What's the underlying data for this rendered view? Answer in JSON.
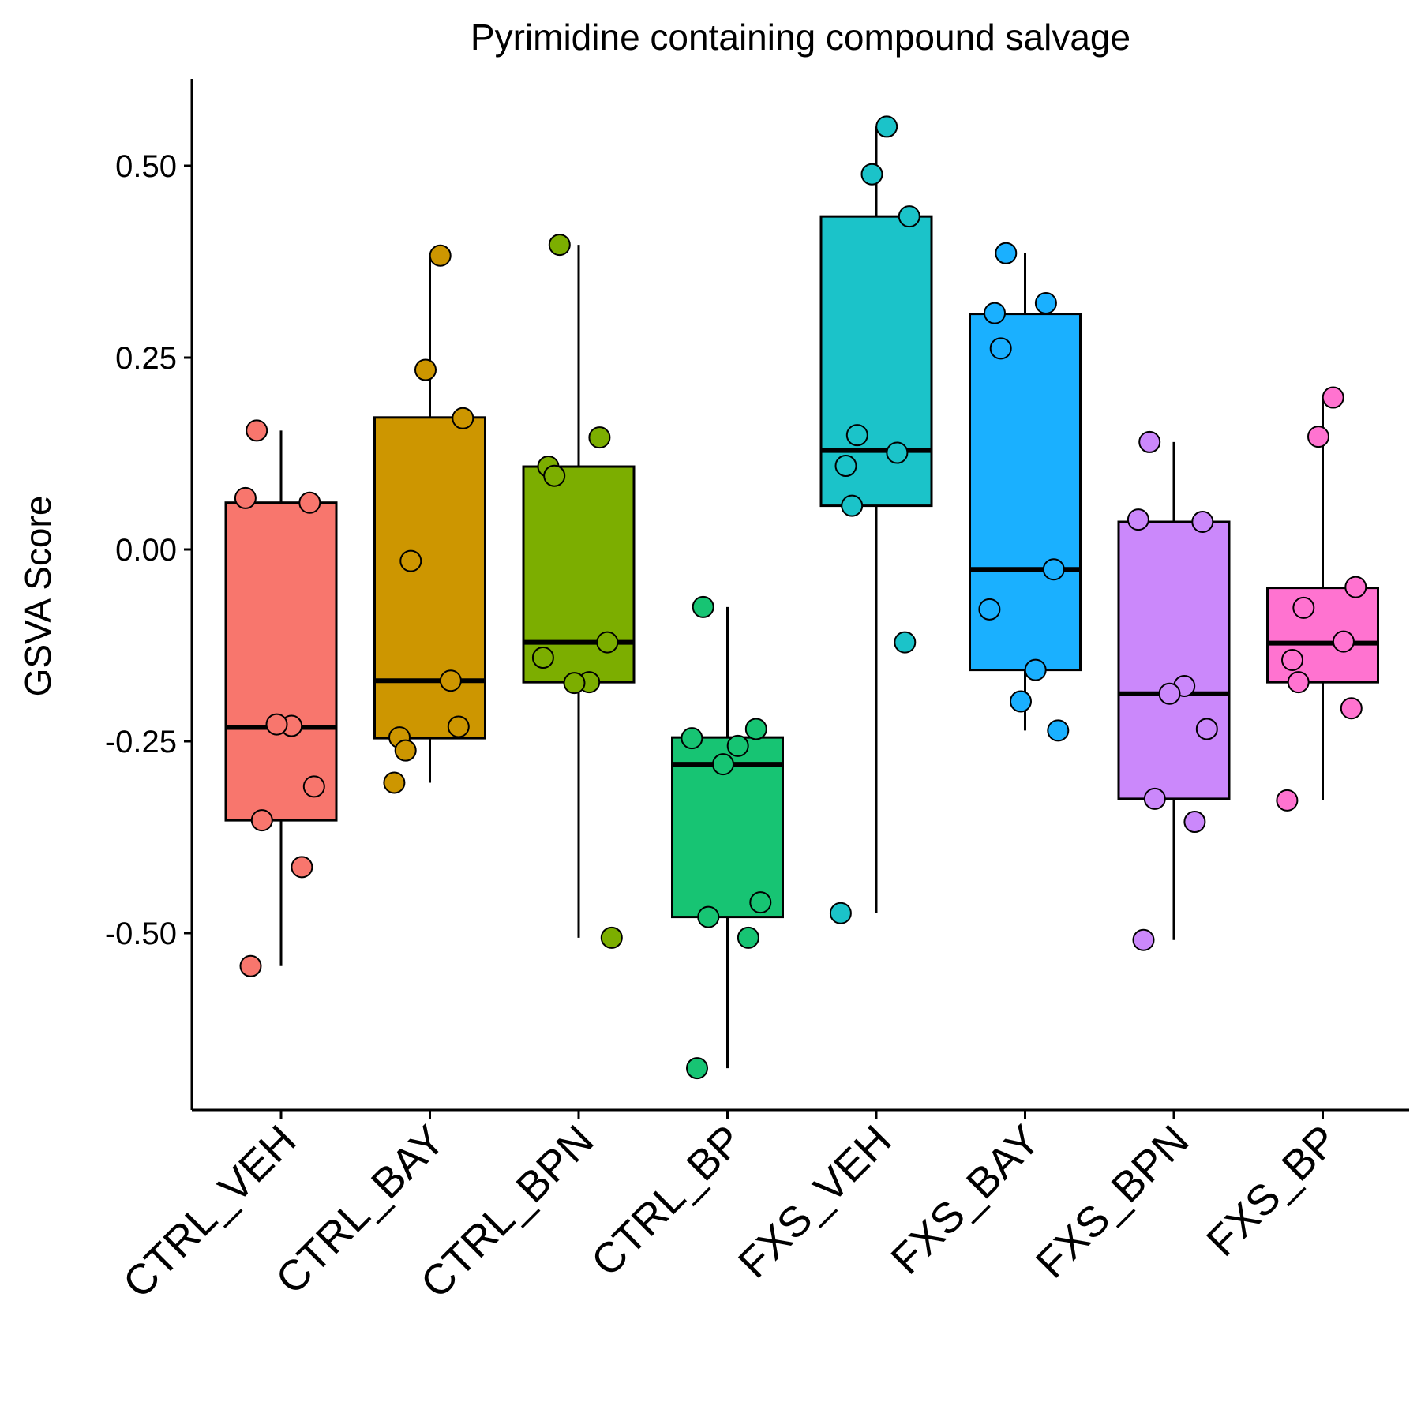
{
  "chart_data": {
    "type": "box",
    "title": "Pyrimidine containing compound salvage",
    "xlabel": "",
    "ylabel": "GSVA Score",
    "ylim": [
      -0.72,
      0.61
    ],
    "yticks": [
      0.5,
      0.25,
      0.0,
      -0.25,
      -0.5
    ],
    "ytick_labels": [
      "0.50",
      "0.25",
      "0.00",
      "-0.25",
      "-0.50"
    ],
    "legend": "none",
    "grid": false,
    "categories": [
      "CTRL_VEH",
      "CTRL_BAY",
      "CTRL_BPN",
      "CTRL_BP",
      "FXS_VEH",
      "FXS_BAY",
      "FXS_BPN",
      "FXS_BP"
    ],
    "groups": [
      {
        "name": "CTRL_VEH",
        "color": "#F8766D",
        "q1": -0.353,
        "median": -0.232,
        "q3": 0.061,
        "whisker_low": -0.543,
        "whisker_high": 0.155,
        "points": [
          0.155,
          0.061,
          0.067,
          -0.23,
          -0.228,
          -0.309,
          -0.353,
          -0.414,
          -0.543
        ]
      },
      {
        "name": "CTRL_BAY",
        "color": "#CD9600",
        "q1": -0.246,
        "median": -0.171,
        "q3": 0.172,
        "whisker_low": -0.304,
        "whisker_high": 0.383,
        "points": [
          0.383,
          0.234,
          0.171,
          -0.015,
          -0.171,
          -0.245,
          -0.262,
          -0.231,
          -0.304
        ]
      },
      {
        "name": "CTRL_BPN",
        "color": "#7CAE00",
        "q1": -0.173,
        "median": -0.121,
        "q3": 0.108,
        "whisker_low": -0.506,
        "whisker_high": 0.397,
        "points": [
          0.397,
          0.146,
          0.108,
          0.096,
          -0.121,
          -0.141,
          -0.173,
          -0.174,
          -0.506
        ]
      },
      {
        "name": "CTRL_BP",
        "color": "#0CB702",
        "fill": "#17C473",
        "q1": -0.479,
        "median": -0.28,
        "q3": -0.245,
        "whisker_low": -0.676,
        "whisker_high": -0.075,
        "points": [
          -0.075,
          -0.234,
          -0.246,
          -0.256,
          -0.28,
          -0.46,
          -0.479,
          -0.506,
          -0.676
        ]
      },
      {
        "name": "FXS_VEH",
        "color": "#00C19A",
        "fill": "#1BC3C9",
        "q1": 0.057,
        "median": 0.129,
        "q3": 0.434,
        "whisker_low": -0.474,
        "whisker_high": 0.551,
        "points": [
          0.551,
          0.489,
          0.434,
          0.149,
          0.126,
          0.109,
          0.057,
          -0.121,
          -0.474
        ]
      },
      {
        "name": "FXS_BAY",
        "color": "#00A9FF",
        "fill": "#1AB0FF",
        "q1": -0.157,
        "median": -0.026,
        "q3": 0.307,
        "whisker_low": -0.236,
        "whisker_high": 0.386,
        "points": [
          0.386,
          0.321,
          0.308,
          0.262,
          -0.026,
          -0.078,
          -0.157,
          -0.198,
          -0.236
        ]
      },
      {
        "name": "FXS_BPN",
        "color": "#C77CFF",
        "fill": "#CB88FB",
        "q1": -0.325,
        "median": -0.188,
        "q3": 0.036,
        "whisker_low": -0.509,
        "whisker_high": 0.14,
        "points": [
          0.14,
          0.036,
          0.039,
          -0.178,
          -0.188,
          -0.234,
          -0.325,
          -0.355,
          -0.509
        ]
      },
      {
        "name": "FXS_BP",
        "color": "#FF61CC",
        "fill": "#FF73D0",
        "q1": -0.173,
        "median": -0.122,
        "q3": -0.05,
        "whisker_low": -0.327,
        "whisker_high": 0.198,
        "points": [
          0.198,
          0.147,
          -0.049,
          -0.076,
          -0.12,
          -0.144,
          -0.173,
          -0.207,
          -0.327
        ]
      }
    ]
  }
}
